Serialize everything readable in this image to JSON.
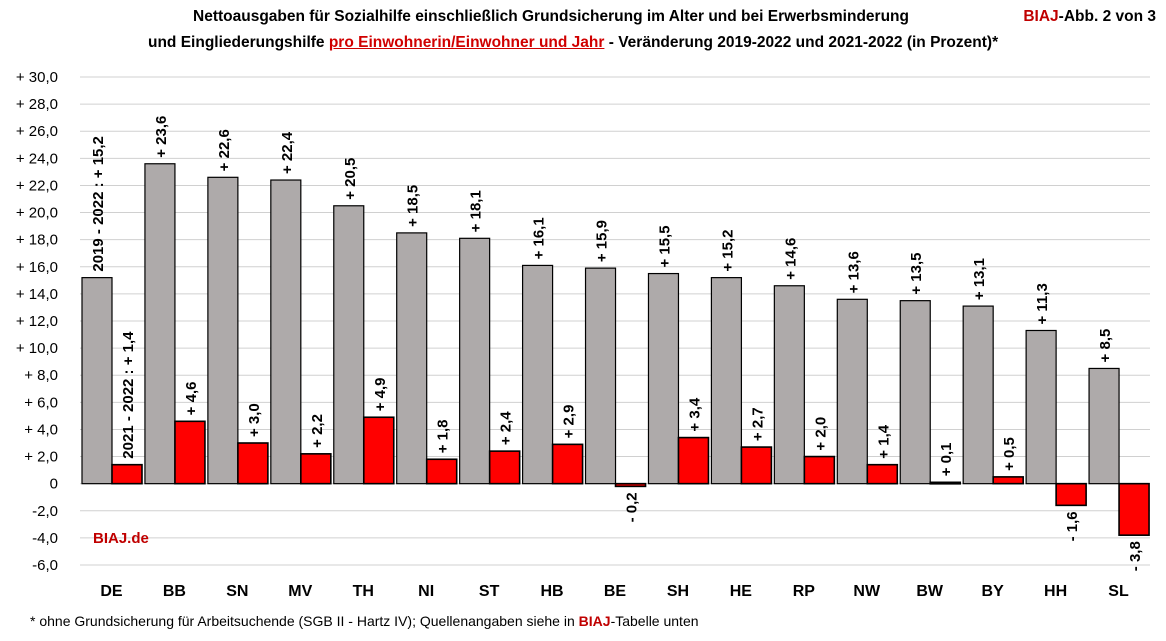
{
  "header": {
    "title_line1": "Nettoausgaben für Sozialhilfe einschließlich Grundsicherung im Alter und bei Erwerbsminderung",
    "title_line2_pre": "und Eingliederungshilfe ",
    "title_line2_link": "pro Einwohnerin/Einwohner und Jahr",
    "title_line2_post": " - Veränderung 2019-2022 und 2021-2022 (in Prozent)*",
    "badge_brand": "BIAJ",
    "badge_text": "-Abb. 2 von 3"
  },
  "watermark": "BIAJ.de",
  "footnote": {
    "pre": "* ohne Grundsicherung für Arbeitsuchende (SGB II - Hartz IV); Quellenangaben siehe in ",
    "brand": "BIAJ",
    "post": "-Tabelle unten"
  },
  "chart_data": {
    "type": "bar",
    "categories": [
      "DE",
      "BB",
      "SN",
      "MV",
      "TH",
      "NI",
      "ST",
      "HB",
      "BE",
      "SH",
      "HE",
      "RP",
      "NW",
      "BW",
      "BY",
      "HH",
      "SL"
    ],
    "series": [
      {
        "name": "2019 - 2022",
        "color": "#aeaaaa",
        "values": [
          15.2,
          23.6,
          22.6,
          22.4,
          20.5,
          18.5,
          18.1,
          16.1,
          15.9,
          15.5,
          15.2,
          14.6,
          13.6,
          13.5,
          13.1,
          11.3,
          8.5
        ],
        "labels": [
          "2019 - 2022 : + 15,2",
          "+ 23,6",
          "+ 22,6",
          "+ 22,4",
          "+ 20,5",
          "+ 18,5",
          "+ 18,1",
          "+ 16,1",
          "+ 15,9",
          "+ 15,5",
          "+ 15,2",
          "+ 14,6",
          "+ 13,6",
          "+ 13,5",
          "+ 13,1",
          "+ 11,3",
          "+ 8,5"
        ]
      },
      {
        "name": "2021 - 2022",
        "color": "#ff0000",
        "values": [
          1.4,
          4.6,
          3.0,
          2.2,
          4.9,
          1.8,
          2.4,
          2.9,
          -0.2,
          3.4,
          2.7,
          2.0,
          1.4,
          0.1,
          0.5,
          -1.6,
          -3.8
        ],
        "labels": [
          "2021 - 2022 : + 1,4",
          "+ 4,6",
          "+ 3,0",
          "+ 2,2",
          "+ 4,9",
          "+ 1,8",
          "+ 2,4",
          "+ 2,9",
          "- 0,2",
          "+ 3,4",
          "+ 2,7",
          "+ 2,0",
          "+ 1,4",
          "+ 0,1",
          "+ 0,5",
          "- 1,6",
          "- 3,8"
        ]
      }
    ],
    "ylim": [
      -6,
      30
    ],
    "yticks": [
      30,
      28,
      26,
      24,
      22,
      20,
      18,
      16,
      14,
      12,
      10,
      8,
      6,
      4,
      2,
      0,
      -2,
      -4,
      -6
    ],
    "ytick_labels": [
      "+ 30,0",
      "+ 28,0",
      "+ 26,0",
      "+ 24,0",
      "+ 22,0",
      "+ 20,0",
      "+ 18,0",
      "+ 16,0",
      "+ 14,0",
      "+ 12,0",
      "+ 10,0",
      "+ 8,0",
      "+ 6,0",
      "+ 4,0",
      "+ 2,0",
      "0",
      "-2,0",
      "-4,0",
      "-6,0"
    ],
    "grid": true,
    "legend": "none"
  }
}
